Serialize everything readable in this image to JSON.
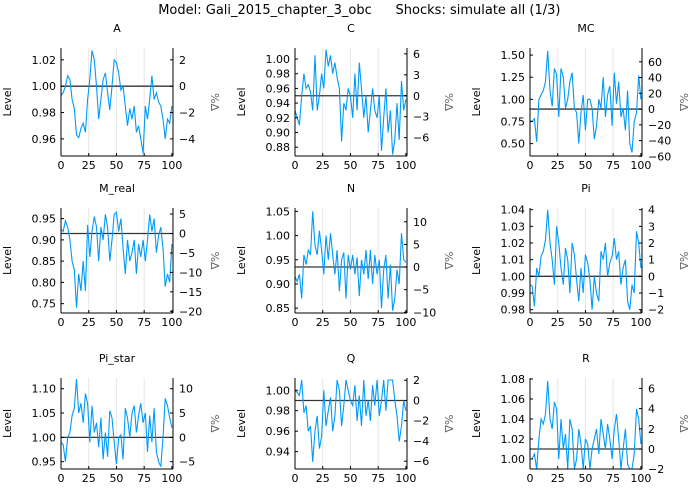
{
  "title_model": "Model: Gali_2015_chapter_3_obc",
  "title_shocks": "Shocks: simulate all  (1/3)",
  "colors": {
    "series": "#009AFA",
    "steady_state": "#000000",
    "grid": "#e6e6e6",
    "right_axis_label": "#666666"
  },
  "chart_data": [
    {
      "type": "line",
      "title": "A",
      "ylabel": "Level",
      "y2label": "%Δ",
      "steady_state": 1.0,
      "xlim": [
        0,
        101
      ],
      "ylim": [
        0.947,
        1.029
      ],
      "xticks": [
        0,
        25,
        50,
        75,
        100
      ],
      "yticks": [
        0.96,
        0.98,
        1.0,
        1.02
      ],
      "y2ticks": [
        -4,
        -2,
        0,
        2
      ],
      "grid": "x",
      "x_step": 2,
      "values": [
        0.993,
        0.995,
        1.0,
        1.008,
        1.005,
        0.99,
        0.983,
        0.963,
        0.961,
        0.968,
        0.972,
        0.965,
        0.99,
        1.005,
        1.027,
        1.02,
        1.0,
        0.975,
        0.99,
        1.005,
        1.01,
        0.995,
        0.982,
        1.0,
        1.02,
        1.018,
        1.01,
        0.997,
        1.0,
        0.985,
        0.97,
        0.983,
        0.975,
        0.985,
        0.965,
        0.97,
        0.96,
        0.949,
        0.985,
        0.975,
        0.99,
        1.008,
        0.99,
        0.995,
        0.988,
        0.985,
        0.975,
        0.96,
        0.975,
        0.972,
        0.985
      ]
    },
    {
      "type": "line",
      "title": "C",
      "ylabel": "Level",
      "y2label": "%Δ",
      "steady_state": 0.95,
      "xlim": [
        0,
        101
      ],
      "ylim": [
        0.868,
        1.015
      ],
      "xticks": [
        0,
        25,
        50,
        75,
        100
      ],
      "yticks": [
        0.88,
        0.9,
        0.92,
        0.94,
        0.96,
        0.98,
        1.0
      ],
      "y2ticks": [
        -6,
        -3,
        0,
        3,
        6
      ],
      "grid": "x",
      "x_step": 2,
      "values": [
        0.93,
        0.92,
        0.91,
        0.95,
        0.98,
        0.96,
        0.965,
        0.955,
        0.93,
        1.005,
        0.93,
        0.95,
        0.98,
        0.96,
        1.013,
        0.99,
        1.005,
        0.98,
        0.995,
        0.975,
        0.96,
        0.888,
        0.94,
        0.93,
        0.96,
        0.95,
        0.92,
        0.98,
        0.93,
        0.995,
        0.96,
        0.92,
        0.95,
        0.9,
        0.93,
        0.96,
        0.93,
        0.92,
        0.95,
        0.875,
        0.92,
        0.96,
        0.9,
        0.93,
        0.87,
        0.89,
        0.94,
        0.89,
        0.97,
        0.93,
        0.945
      ]
    },
    {
      "type": "line",
      "title": "MC",
      "ylabel": "Level",
      "y2label": "%Δ",
      "steady_state": 0.89,
      "xlim": [
        0,
        101
      ],
      "ylim": [
        0.36,
        1.58
      ],
      "xticks": [
        0,
        25,
        50,
        75,
        100
      ],
      "yticks": [
        0.5,
        0.75,
        1.0,
        1.25,
        1.5
      ],
      "y2ticks": [
        -60,
        -40,
        -20,
        0,
        20,
        40,
        60
      ],
      "grid": "x",
      "x_step": 2,
      "values": [
        0.76,
        0.75,
        0.78,
        0.52,
        1.0,
        1.05,
        1.1,
        1.2,
        1.55,
        1.1,
        0.92,
        1.35,
        1.28,
        0.8,
        1.35,
        1.25,
        0.9,
        1.0,
        1.2,
        1.3,
        0.9,
        0.85,
        0.5,
        0.85,
        1.05,
        0.65,
        1.0,
        1.0,
        0.9,
        0.55,
        0.7,
        1.0,
        0.9,
        1.25,
        0.8,
        1.05,
        1.15,
        0.7,
        1.3,
        0.95,
        1.2,
        0.8,
        0.9,
        0.65,
        1.1,
        0.5,
        0.4,
        0.75,
        0.85,
        1.27,
        1.0
      ]
    },
    {
      "type": "line",
      "title": "M_real",
      "ylabel": "Level",
      "y2label": "%Δ",
      "steady_state": 0.915,
      "xlim": [
        0,
        101
      ],
      "ylim": [
        0.728,
        0.975
      ],
      "xticks": [
        0,
        25,
        50,
        75,
        100
      ],
      "yticks": [
        0.75,
        0.8,
        0.85,
        0.9,
        0.95
      ],
      "y2ticks": [
        -20,
        -15,
        -10,
        -5,
        0,
        5
      ],
      "grid": "x",
      "x_step": 2,
      "values": [
        0.925,
        0.92,
        0.945,
        0.93,
        0.9,
        0.85,
        0.83,
        0.74,
        0.82,
        0.78,
        0.85,
        0.78,
        0.935,
        0.86,
        0.92,
        0.955,
        0.93,
        0.85,
        0.93,
        0.9,
        0.96,
        0.93,
        0.85,
        0.9,
        0.96,
        0.965,
        0.92,
        0.95,
        0.88,
        0.82,
        0.9,
        0.85,
        0.87,
        0.9,
        0.82,
        0.89,
        0.86,
        0.9,
        0.85,
        0.9,
        0.96,
        0.92,
        0.95,
        0.87,
        0.91,
        0.93,
        0.88,
        0.79,
        0.82,
        0.8,
        0.89
      ]
    },
    {
      "type": "line",
      "title": "N",
      "ylabel": "Level",
      "y2label": "%Δ",
      "steady_state": 0.935,
      "xlim": [
        0,
        101
      ],
      "ylim": [
        0.84,
        1.057
      ],
      "xticks": [
        0,
        25,
        50,
        75,
        100
      ],
      "yticks": [
        0.85,
        0.9,
        0.95,
        1.0,
        1.05
      ],
      "y2ticks": [
        -10,
        -5,
        0,
        5,
        10
      ],
      "grid": "x",
      "x_step": 2,
      "values": [
        0.915,
        0.905,
        0.92,
        0.87,
        0.96,
        0.94,
        0.97,
        0.96,
        1.05,
        0.98,
        0.96,
        1.01,
        0.97,
        0.92,
        1.0,
        0.95,
        1.005,
        0.96,
        0.92,
        0.97,
        0.885,
        0.95,
        0.965,
        0.87,
        0.96,
        0.93,
        0.96,
        0.92,
        0.955,
        0.875,
        0.95,
        0.92,
        0.97,
        0.91,
        0.97,
        0.9,
        0.96,
        0.92,
        0.95,
        0.85,
        0.93,
        0.96,
        0.87,
        0.94,
        0.845,
        0.87,
        0.93,
        0.9,
        1.005,
        0.95,
        0.945
      ]
    },
    {
      "type": "line",
      "title": "Pi",
      "ylabel": "Level",
      "y2label": "%Δ",
      "steady_state": 1.0,
      "xlim": [
        0,
        101
      ],
      "ylim": [
        0.978,
        1.041
      ],
      "xticks": [
        0,
        25,
        50,
        75,
        100
      ],
      "yticks": [
        0.98,
        0.99,
        1.0,
        1.01,
        1.02,
        1.03,
        1.04
      ],
      "y2ticks": [
        -2,
        -1,
        0,
        1,
        2,
        3,
        4
      ],
      "grid": "x",
      "x_step": 2,
      "values": [
        0.995,
        0.994,
        0.982,
        1.005,
        1.0,
        1.012,
        1.015,
        1.022,
        1.04,
        1.02,
        1.01,
        0.995,
        1.03,
        1.02,
        1.005,
        0.995,
        1.017,
        1.01,
        0.99,
        1.02,
        1.013,
        0.998,
        0.985,
        1.005,
        0.99,
        1.013,
        1.008,
        0.998,
        0.98,
        1.0,
        0.99,
        0.985,
        1.015,
        1.01,
        1.02,
        1.0,
        1.008,
        1.012,
        1.023,
        1.01,
        1.015,
        0.995,
        1.005,
        1.01,
        0.985,
        0.98,
        0.995,
        0.99,
        1.027,
        1.02,
        1.005
      ]
    },
    {
      "type": "line",
      "title": "Pi_star",
      "ylabel": "Level",
      "y2label": "%Δ",
      "steady_state": 1.0,
      "xlim": [
        0,
        101
      ],
      "ylim": [
        0.935,
        1.122
      ],
      "xticks": [
        0,
        25,
        50,
        75,
        100
      ],
      "yticks": [
        0.95,
        1.0,
        1.05,
        1.1
      ],
      "y2ticks": [
        -5,
        0,
        5,
        10
      ],
      "grid": "x",
      "x_step": 2,
      "values": [
        0.99,
        0.985,
        0.95,
        1.0,
        1.01,
        1.045,
        1.06,
        1.12,
        1.05,
        1.07,
        1.03,
        1.09,
        1.07,
        0.99,
        1.065,
        1.01,
        1.03,
        0.98,
        1.04,
        0.955,
        1.01,
        0.96,
        1.055,
        1.04,
        0.99,
        0.945,
        1.0,
        1.005,
        0.955,
        1.06,
        1.04,
        1.0,
        1.05,
        1.065,
        1.01,
        1.045,
        1.07,
        1.03,
        1.05,
        0.97,
        1.045,
        0.99,
        1.06,
        0.97,
        0.95,
        0.94,
        1.0,
        1.08,
        1.065,
        1.04,
        1.02
      ]
    },
    {
      "type": "line",
      "title": "Q",
      "ylabel": "Level",
      "y2label": "%Δ",
      "steady_state": 0.99,
      "xlim": [
        0,
        101
      ],
      "ylim": [
        0.923,
        1.012
      ],
      "xticks": [
        0,
        25,
        50,
        75,
        100
      ],
      "yticks": [
        0.94,
        0.96,
        0.98,
        1.0
      ],
      "y2ticks": [
        -6,
        -4,
        -2,
        0,
        2
      ],
      "grid": "x",
      "x_step": 2,
      "values": [
        1.0,
        0.998,
        0.995,
        1.01,
        0.978,
        0.985,
        0.96,
        0.965,
        0.93,
        0.96,
        0.975,
        0.943,
        0.955,
        1.0,
        0.965,
        0.98,
        0.993,
        0.96,
        0.975,
        1.01,
        1.0,
        0.965,
        0.985,
        1.01,
        1.0,
        0.99,
        0.985,
        1.005,
        0.97,
        0.995,
        0.965,
        1.01,
        0.975,
        0.99,
        0.97,
        1.005,
        0.985,
        1.01,
        0.975,
        0.99,
        1.01,
        0.98,
        1.01,
        1.01,
        1.01,
        0.99,
        0.975,
        0.95,
        0.965,
        0.99,
        0.98
      ]
    },
    {
      "type": "line",
      "title": "R",
      "ylabel": "Level",
      "y2label": "%Δ",
      "steady_state": 1.01,
      "xlim": [
        0,
        101
      ],
      "ylim": [
        0.99,
        1.081
      ],
      "xticks": [
        0,
        25,
        50,
        75,
        100
      ],
      "yticks": [
        1.0,
        1.02,
        1.04,
        1.06,
        1.08
      ],
      "y2ticks": [
        -2,
        0,
        2,
        4,
        6
      ],
      "grid": "x",
      "x_step": 2,
      "values": [
        1.0,
        1.0,
        1.005,
        0.99,
        1.02,
        1.04,
        1.035,
        1.045,
        1.078,
        1.04,
        1.03,
        1.057,
        1.05,
        1.0,
        1.04,
        1.01,
        1.025,
        0.99,
        1.04,
        1.03,
        0.99,
        1.0,
        1.03,
        1.015,
        0.99,
        1.02,
        1.015,
        0.99,
        1.01,
        1.02,
        1.03,
        1.005,
        1.04,
        1.025,
        1.01,
        1.035,
        1.02,
        1.0,
        1.03,
        1.045,
        1.02,
        0.99,
        1.01,
        1.03,
        0.995,
        0.99,
        0.99,
        1.005,
        1.05,
        1.04,
        1.015
      ]
    }
  ]
}
